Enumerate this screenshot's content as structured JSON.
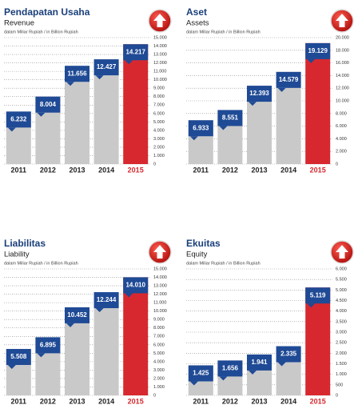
{
  "chart_data": [
    {
      "type": "bar",
      "title": "Pendapatan Usaha",
      "subtitle": "Revenue",
      "note": "dalam Miliar Rupiah / in Billion Rupiah",
      "categories": [
        "2011",
        "2012",
        "2013",
        "2014",
        "2015"
      ],
      "values": [
        6232,
        8004,
        11656,
        12427,
        14217
      ],
      "value_labels": [
        "6.232",
        "8.004",
        "11.656",
        "12.427",
        "14.217"
      ],
      "colors": [
        "#c9c9c9",
        "#c9c9c9",
        "#c9c9c9",
        "#c9c9c9",
        "#d7282f"
      ],
      "label_color": "#1f4a95",
      "ylim": [
        0,
        15000
      ],
      "yticks": [
        0,
        {
          "value": 1000,
          "label": "1.000"
        },
        {
          "value": 2000,
          "label": "2.000"
        },
        {
          "value": 3000,
          "label": "3.000"
        },
        {
          "value": 4000,
          "label": "4.000"
        },
        {
          "value": 5000,
          "label": "5.000"
        },
        {
          "value": 6000,
          "label": "6.000"
        },
        {
          "value": 7000,
          "label": "7.000"
        },
        {
          "value": 8000,
          "label": "8.000"
        },
        {
          "value": 9000,
          "label": "9.000"
        },
        {
          "value": 10000,
          "label": "10.000"
        },
        {
          "value": 11000,
          "label": "11.000"
        },
        {
          "value": 12000,
          "label": "12.000"
        },
        {
          "value": 13000,
          "label": "13.000"
        },
        {
          "value": 14000,
          "label": "14.000"
        },
        {
          "value": 15000,
          "label": "15.000"
        }
      ],
      "grid": true
    },
    {
      "type": "bar",
      "title": "Aset",
      "subtitle": "Assets",
      "note": "dalam Miliar Rupiah / in Billion Rupiah",
      "categories": [
        "2011",
        "2012",
        "2013",
        "2014",
        "2015"
      ],
      "values": [
        6933,
        8551,
        12393,
        14579,
        19129
      ],
      "value_labels": [
        "6.933",
        "8.551",
        "12.393",
        "14.579",
        "19.129"
      ],
      "colors": [
        "#c9c9c9",
        "#c9c9c9",
        "#c9c9c9",
        "#c9c9c9",
        "#d7282f"
      ],
      "label_color": "#1f4a95",
      "ylim": [
        0,
        20000
      ],
      "yticks": [
        0,
        {
          "value": 2000,
          "label": "2.000"
        },
        {
          "value": 4000,
          "label": "4.000"
        },
        {
          "value": 6000,
          "label": "6.000"
        },
        {
          "value": 8000,
          "label": "8.000"
        },
        {
          "value": 10000,
          "label": "10.000"
        },
        {
          "value": 12000,
          "label": "12.000"
        },
        {
          "value": 14000,
          "label": "14.000"
        },
        {
          "value": 16000,
          "label": "16.000"
        },
        {
          "value": 18000,
          "label": "18.000"
        },
        {
          "value": 20000,
          "label": "20.000"
        }
      ],
      "grid": true
    },
    {
      "type": "bar",
      "title": "Liabilitas",
      "subtitle": "Liability",
      "note": "dalam Miliar Rupiah / in Billion Rupiah",
      "categories": [
        "2011",
        "2012",
        "2013",
        "2014",
        "2015"
      ],
      "values": [
        5508,
        6895,
        10452,
        12244,
        14010
      ],
      "value_labels": [
        "5.508",
        "6.895",
        "10.452",
        "12.244",
        "14.010"
      ],
      "colors": [
        "#c9c9c9",
        "#c9c9c9",
        "#c9c9c9",
        "#c9c9c9",
        "#d7282f"
      ],
      "label_color": "#1f4a95",
      "ylim": [
        0,
        15000
      ],
      "yticks": [
        0,
        {
          "value": 1000,
          "label": "1.000"
        },
        {
          "value": 2000,
          "label": "2.000"
        },
        {
          "value": 3000,
          "label": "3.000"
        },
        {
          "value": 4000,
          "label": "4.000"
        },
        {
          "value": 5000,
          "label": "5.000"
        },
        {
          "value": 6000,
          "label": "6.000"
        },
        {
          "value": 7000,
          "label": "7.000"
        },
        {
          "value": 8000,
          "label": "8.000"
        },
        {
          "value": 9000,
          "label": "9.000"
        },
        {
          "value": 10000,
          "label": "10.000"
        },
        {
          "value": 11000,
          "label": "11.000"
        },
        {
          "value": 12000,
          "label": "12.000"
        },
        {
          "value": 13000,
          "label": "13.000"
        },
        {
          "value": 14000,
          "label": "14.000"
        },
        {
          "value": 15000,
          "label": "15.000"
        }
      ],
      "grid": true
    },
    {
      "type": "bar",
      "title": "Ekuitas",
      "subtitle": "Equity",
      "note": "dalam Miliar Rupiah / in Billion Rupiah",
      "categories": [
        "2011",
        "2012",
        "2013",
        "2014",
        "2015"
      ],
      "values": [
        1425,
        1656,
        1941,
        2335,
        5119
      ],
      "value_labels": [
        "1.425",
        "1.656",
        "1.941",
        "2.335",
        "5.119"
      ],
      "colors": [
        "#c9c9c9",
        "#c9c9c9",
        "#c9c9c9",
        "#c9c9c9",
        "#d7282f"
      ],
      "label_color": "#1f4a95",
      "ylim": [
        0,
        6000
      ],
      "yticks": [
        0,
        500,
        {
          "value": 1000,
          "label": "1.000"
        },
        {
          "value": 1500,
          "label": "1.500"
        },
        {
          "value": 2000,
          "label": "2.000"
        },
        {
          "value": 2500,
          "label": "2.500"
        },
        {
          "value": 3000,
          "label": "3.000"
        },
        {
          "value": 3500,
          "label": "3.500"
        },
        {
          "value": 4000,
          "label": "4.000"
        },
        {
          "value": 4500,
          "label": "4.500"
        },
        {
          "value": 5000,
          "label": "5.000"
        },
        {
          "value": 5500,
          "label": "5.500"
        },
        {
          "value": 6000,
          "label": "6.000"
        }
      ],
      "grid": true
    }
  ]
}
